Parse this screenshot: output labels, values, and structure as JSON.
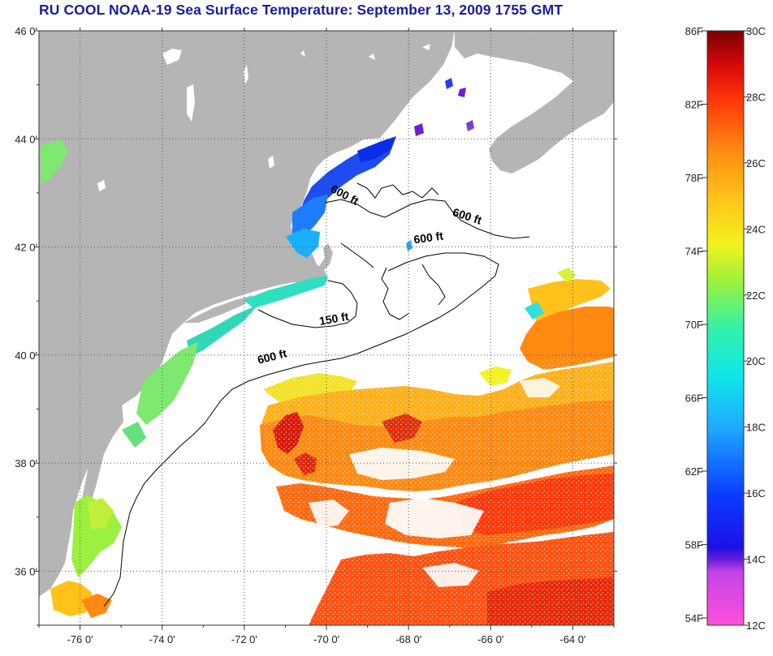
{
  "title": "RU COOL  NOAA-19  Sea Surface Temperature:  September 13, 2009 1755 GMT",
  "map": {
    "lon_ticks": [
      "-76 0'",
      "-74 0'",
      "-72 0'",
      "-70 0'",
      "-68 0'",
      "-66 0'",
      "-64 0'"
    ],
    "lat_ticks": [
      "46 0'",
      "44 0'",
      "42 0'",
      "40 0'",
      "38 0'",
      "36 0'"
    ],
    "lon_range": [
      -77,
      -63
    ],
    "lat_range": [
      35,
      46
    ],
    "contour_labels": [
      {
        "text": "600 ft",
        "lon": -69.6,
        "lat": 42.9
      },
      {
        "text": "600 ft",
        "lon": -66.6,
        "lat": 42.5
      },
      {
        "text": "600 ft",
        "lon": -67.5,
        "lat": 42.1
      },
      {
        "text": "150 ft",
        "lon": -69.8,
        "lat": 40.6
      },
      {
        "text": "600 ft",
        "lon": -71.3,
        "lat": 39.9
      }
    ],
    "colors": {
      "land": "#b5b5b5",
      "ocean_no_data": "#ffffff",
      "contour": "#000000"
    }
  },
  "colorbar": {
    "fahrenheit_labels": [
      "86F",
      "82F",
      "78F",
      "74F",
      "70F",
      "66F",
      "62F",
      "58F",
      "54F"
    ],
    "celsius_labels": [
      "30C",
      "28C",
      "26C",
      "24C",
      "22C",
      "20C",
      "18C",
      "16C",
      "14C",
      "12C"
    ],
    "range_c": [
      12,
      30
    ]
  }
}
